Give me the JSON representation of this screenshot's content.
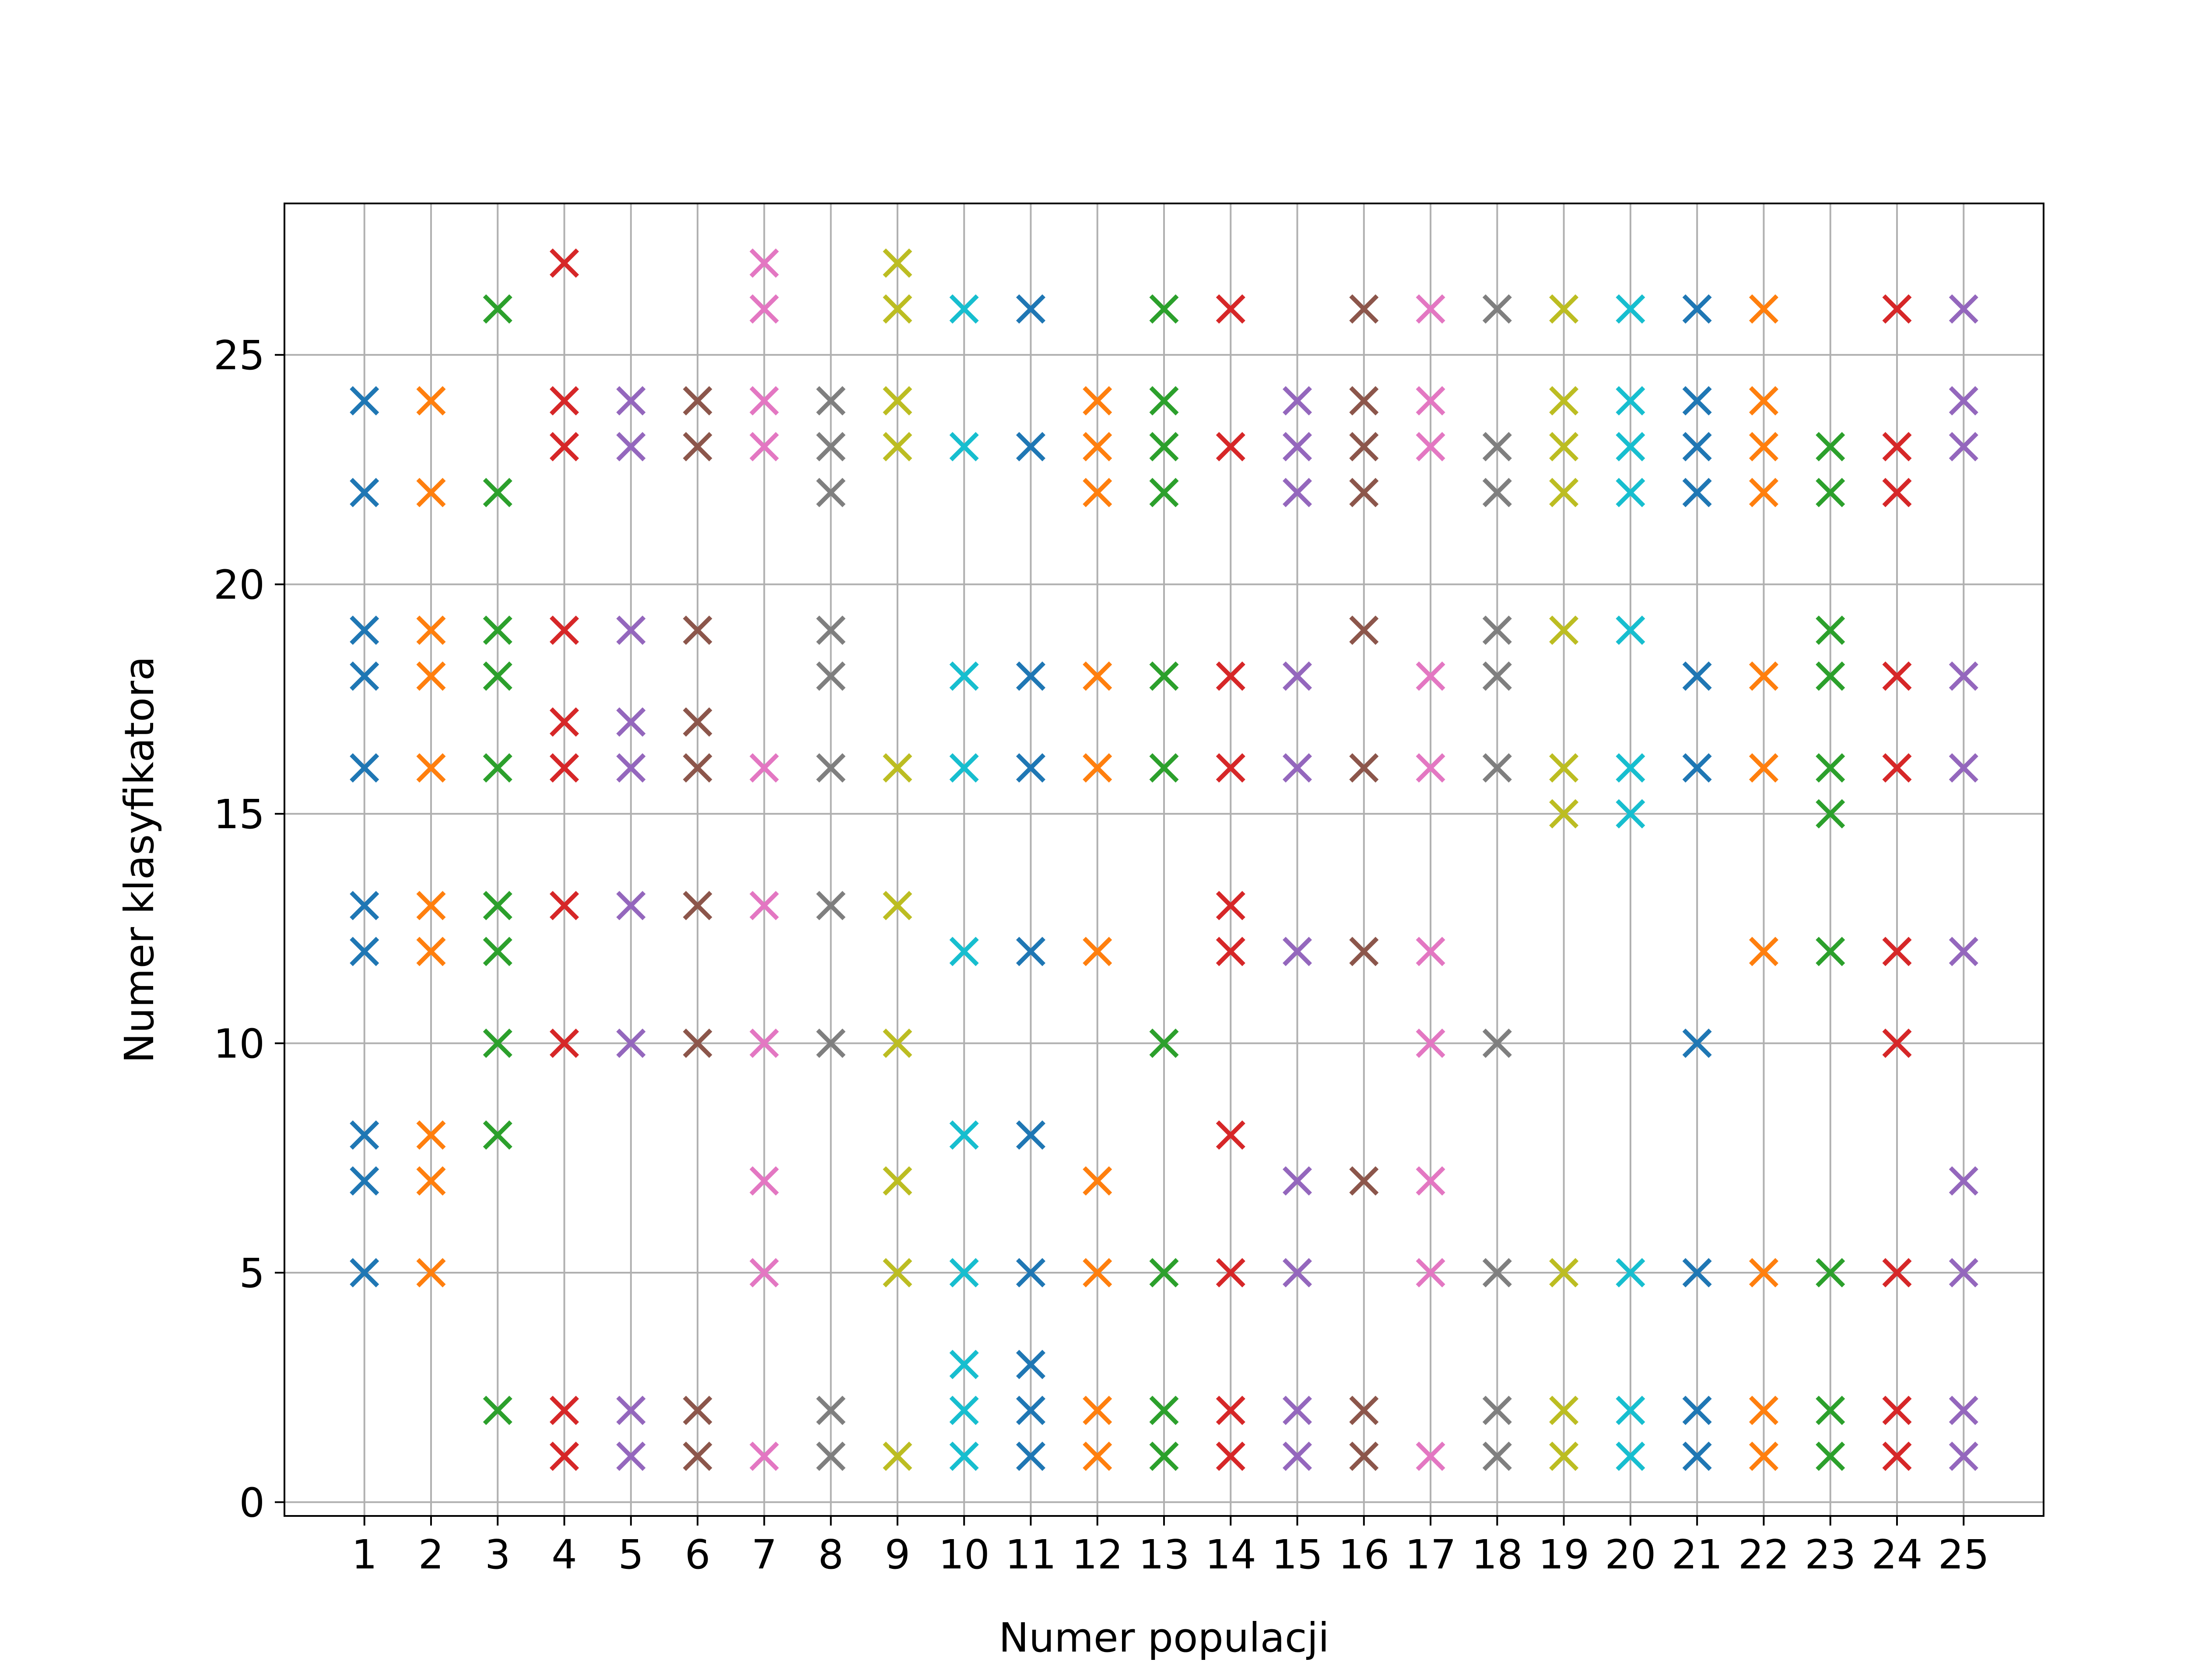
{
  "chart_data": {
    "type": "scatter",
    "marker": "x",
    "title": "",
    "xlabel": "Numer populacji",
    "ylabel": "Numer klasyfikatora",
    "xlim": [
      -0.2,
      26.2
    ],
    "ylim": [
      -0.3,
      28.3
    ],
    "xticks": [
      1,
      2,
      3,
      4,
      5,
      6,
      7,
      8,
      9,
      10,
      11,
      12,
      13,
      14,
      15,
      16,
      17,
      18,
      19,
      20,
      21,
      22,
      23,
      24,
      25
    ],
    "xtick_labels": [
      "1",
      "2",
      "3",
      "4",
      "5",
      "6",
      "7",
      "8",
      "9",
      "10",
      "11",
      "12",
      "13",
      "14",
      "15",
      "16",
      "17",
      "18",
      "19",
      "20",
      "21",
      "22",
      "23",
      "24",
      "25"
    ],
    "yticks": [
      0,
      5,
      10,
      15,
      20,
      25
    ],
    "ytick_labels": [
      "0",
      "5",
      "10",
      "15",
      "20",
      "25"
    ],
    "grid": true,
    "legend": "none",
    "series": [
      {
        "x": 1,
        "color": "#1f77b4",
        "values": [
          5,
          7,
          8,
          12,
          13,
          16,
          18,
          19,
          22,
          24
        ]
      },
      {
        "x": 2,
        "color": "#ff7f0e",
        "values": [
          5,
          7,
          8,
          12,
          13,
          16,
          18,
          19,
          22,
          24
        ]
      },
      {
        "x": 3,
        "color": "#2ca02c",
        "values": [
          2,
          8,
          10,
          12,
          13,
          16,
          18,
          19,
          22,
          26
        ]
      },
      {
        "x": 4,
        "color": "#d62728",
        "values": [
          1,
          2,
          10,
          13,
          16,
          17,
          19,
          23,
          24,
          27
        ]
      },
      {
        "x": 5,
        "color": "#9467bd",
        "values": [
          1,
          2,
          10,
          13,
          16,
          17,
          19,
          23,
          24
        ]
      },
      {
        "x": 6,
        "color": "#8c564b",
        "values": [
          1,
          2,
          10,
          13,
          16,
          17,
          19,
          23,
          24
        ]
      },
      {
        "x": 7,
        "color": "#e377c2",
        "values": [
          1,
          5,
          7,
          10,
          13,
          16,
          23,
          24,
          26,
          27
        ]
      },
      {
        "x": 8,
        "color": "#7f7f7f",
        "values": [
          1,
          2,
          10,
          13,
          16,
          18,
          19,
          22,
          23,
          24
        ]
      },
      {
        "x": 9,
        "color": "#bcbd22",
        "values": [
          1,
          5,
          7,
          10,
          13,
          16,
          23,
          24,
          26,
          27
        ]
      },
      {
        "x": 10,
        "color": "#17becf",
        "values": [
          1,
          2,
          3,
          5,
          8,
          12,
          16,
          18,
          23,
          26
        ]
      },
      {
        "x": 11,
        "color": "#1f77b4",
        "values": [
          1,
          2,
          3,
          5,
          8,
          12,
          16,
          18,
          23,
          26
        ]
      },
      {
        "x": 12,
        "color": "#ff7f0e",
        "values": [
          1,
          2,
          5,
          7,
          12,
          16,
          18,
          22,
          23,
          24
        ]
      },
      {
        "x": 13,
        "color": "#2ca02c",
        "values": [
          1,
          2,
          5,
          10,
          16,
          18,
          22,
          23,
          24,
          26
        ]
      },
      {
        "x": 14,
        "color": "#d62728",
        "values": [
          1,
          2,
          5,
          8,
          12,
          13,
          16,
          18,
          23,
          26
        ]
      },
      {
        "x": 15,
        "color": "#9467bd",
        "values": [
          1,
          2,
          5,
          7,
          12,
          16,
          18,
          22,
          23,
          24
        ]
      },
      {
        "x": 16,
        "color": "#8c564b",
        "values": [
          1,
          2,
          7,
          12,
          16,
          19,
          22,
          23,
          24,
          26
        ]
      },
      {
        "x": 17,
        "color": "#e377c2",
        "values": [
          1,
          5,
          7,
          10,
          12,
          16,
          18,
          23,
          24,
          26
        ]
      },
      {
        "x": 18,
        "color": "#7f7f7f",
        "values": [
          1,
          2,
          5,
          10,
          16,
          18,
          19,
          22,
          23,
          26
        ]
      },
      {
        "x": 19,
        "color": "#bcbd22",
        "values": [
          1,
          2,
          5,
          15,
          16,
          19,
          22,
          23,
          24,
          26
        ]
      },
      {
        "x": 20,
        "color": "#17becf",
        "values": [
          1,
          2,
          5,
          15,
          16,
          19,
          22,
          23,
          24,
          26
        ]
      },
      {
        "x": 21,
        "color": "#1f77b4",
        "values": [
          1,
          2,
          5,
          10,
          16,
          18,
          22,
          23,
          24,
          26
        ]
      },
      {
        "x": 22,
        "color": "#ff7f0e",
        "values": [
          1,
          2,
          5,
          12,
          16,
          18,
          22,
          23,
          24,
          26
        ]
      },
      {
        "x": 23,
        "color": "#2ca02c",
        "values": [
          1,
          2,
          5,
          12,
          15,
          16,
          18,
          19,
          22,
          23
        ]
      },
      {
        "x": 24,
        "color": "#d62728",
        "values": [
          1,
          2,
          5,
          10,
          12,
          16,
          18,
          22,
          23,
          26
        ]
      },
      {
        "x": 25,
        "color": "#9467bd",
        "values": [
          1,
          2,
          5,
          7,
          12,
          16,
          18,
          23,
          24,
          26
        ]
      }
    ]
  }
}
